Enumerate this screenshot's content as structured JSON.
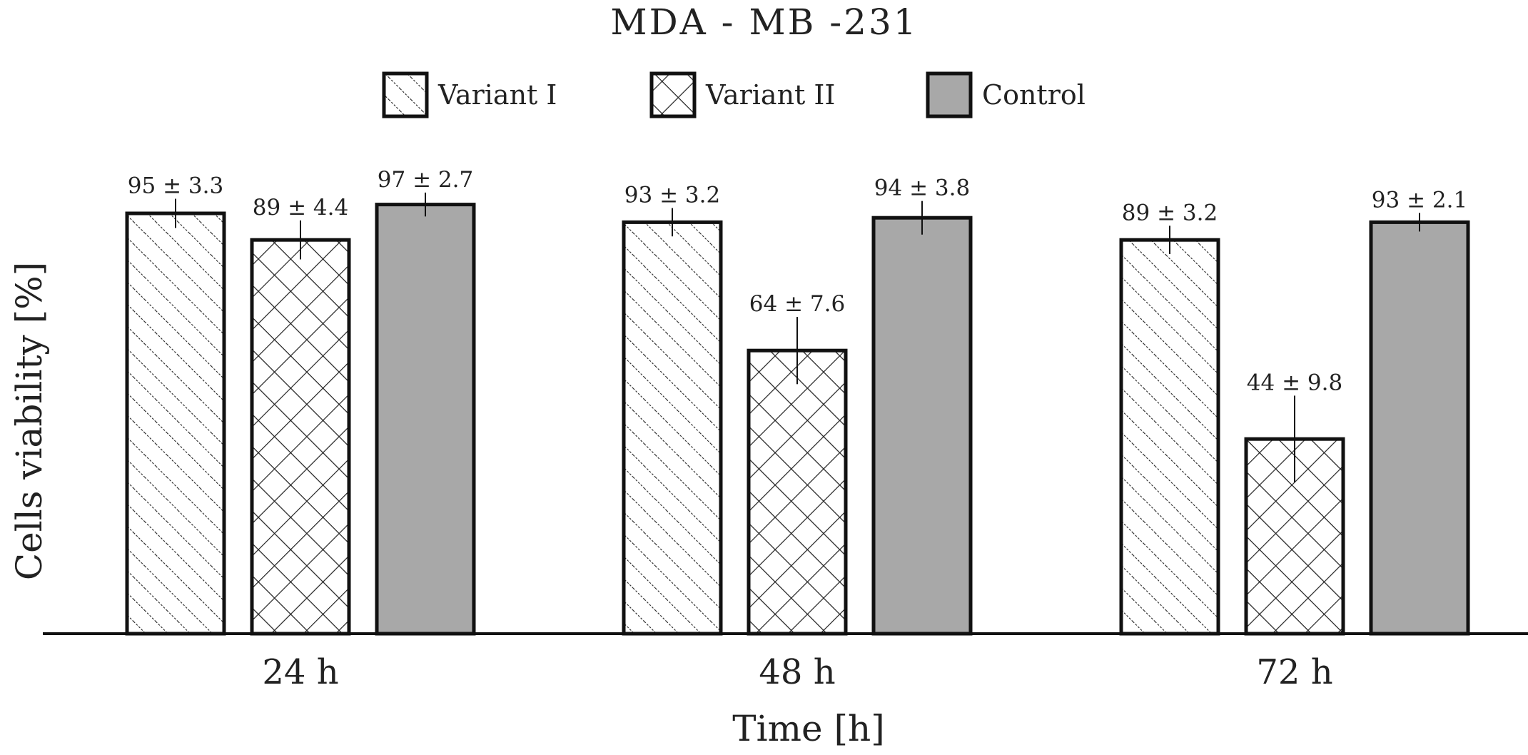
{
  "chart_data": {
    "type": "bar",
    "title": "MDA - MB -231",
    "xlabel": "Time [h]",
    "ylabel": "Cells viability [%]",
    "ylim": [
      0,
      100
    ],
    "grid": false,
    "legend_position": "top-center",
    "categories": [
      "24 h",
      "48 h",
      "72 h"
    ],
    "series": [
      {
        "name": "Variant I",
        "pattern": "diagonal-hatch",
        "values": [
          95,
          93,
          89
        ],
        "errors": [
          3.3,
          3.2,
          3.2
        ],
        "labels": [
          "95 ± 3.3",
          "93 ± 3.2",
          "89 ± 3.2"
        ]
      },
      {
        "name": "Variant II",
        "pattern": "cross-hatch",
        "values": [
          89,
          64,
          44
        ],
        "errors": [
          4.4,
          7.6,
          9.8
        ],
        "labels": [
          "89 ± 4.4",
          "64 ± 7.6",
          "44 ± 9.8"
        ]
      },
      {
        "name": "Control",
        "pattern": "solid",
        "values": [
          97,
          94,
          93
        ],
        "errors": [
          2.7,
          3.8,
          2.1
        ],
        "labels": [
          "97 ± 2.7",
          "94 ± 3.8",
          "93 ± 2.1"
        ]
      }
    ]
  },
  "colors": {
    "bar_outline": "#111111",
    "hatch": "#222222",
    "control_fill": "#a8a8a8",
    "text": "#222222"
  }
}
